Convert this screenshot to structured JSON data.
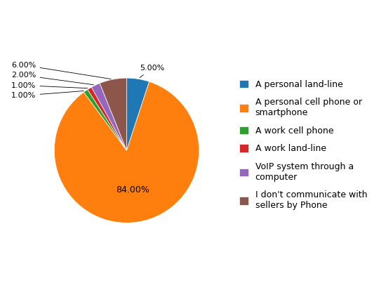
{
  "chart_data": {
    "type": "pie",
    "categories": [
      "A personal land-line",
      "A personal cell phone or\nsmartphone",
      "A work cell phone",
      "A work land-line",
      "VoIP system through a\ncomputer",
      "I don't communicate with\nsellers by Phone"
    ],
    "values": [
      5.0,
      84.0,
      1.0,
      1.0,
      2.0,
      6.0
    ],
    "value_labels": [
      "5.00%",
      "84.00%",
      "1.00%",
      "1.00%",
      "2.00%",
      "6.00%"
    ],
    "data_labels": true,
    "legend": "center left"
  }
}
